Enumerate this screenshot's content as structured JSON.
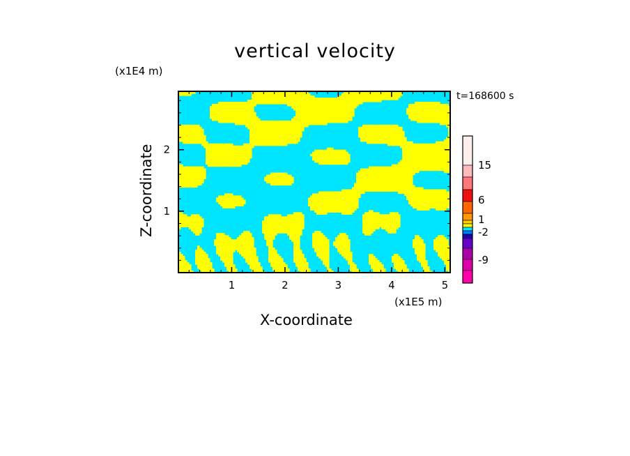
{
  "chart_data": {
    "type": "heatmap",
    "title": "vertical velocity",
    "xlabel": "X-coordinate",
    "ylabel": "Z-coordinate",
    "x_unit": "(x1E5 m)",
    "y_unit": "(x1E4 m)",
    "time_label": "t=168600 s",
    "xlim": [
      0,
      5.1
    ],
    "ylim": [
      0,
      2.95
    ],
    "x_ticks": [
      "1",
      "2",
      "3",
      "4",
      "5"
    ],
    "y_ticks": [
      "1",
      "2"
    ],
    "field_colors": {
      "positive": "#ffff00",
      "negative": "#00e5ff"
    },
    "colorbar": {
      "colors": [
        "#ffeeee",
        "#ffbbbb",
        "#ff7777",
        "#ee1111",
        "#ff6600",
        "#ff9900",
        "#ffcc00",
        "#ffff00",
        "#00e5ff",
        "#0077ff",
        "#2200aa",
        "#6600cc",
        "#aa00aa",
        "#dd00aa",
        "#ff00aa"
      ],
      "tick_labels": [
        "15",
        "6",
        "1",
        "-2",
        "-9"
      ]
    }
  }
}
